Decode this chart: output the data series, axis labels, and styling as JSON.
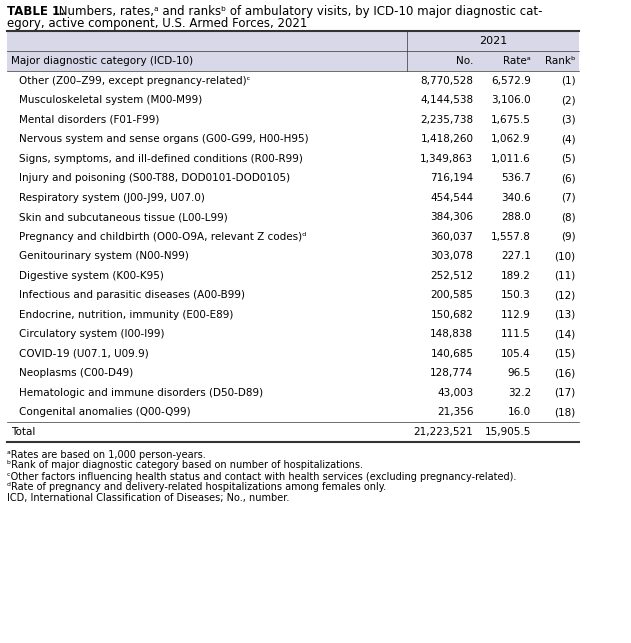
{
  "title_bold": "TABLE 1.",
  "title_rest": " Numbers, rates,ᵃ and ranksᵇ of ambulatory visits, by ICD-10 major diagnostic category, active component, U.S. Armed Forces, 2021",
  "header_year": "2021",
  "col_headers": [
    "Major diagnostic category (ICD-10)",
    "No.",
    "Rateᵃ",
    "Rankᵇ"
  ],
  "rows": [
    [
      "Other (Z00–Z99, except pregnancy-related)ᶜ",
      "8,770,528",
      "6,572.9",
      "(1)"
    ],
    [
      "Musculoskeletal system (M00-M99)",
      "4,144,538",
      "3,106.0",
      "(2)"
    ],
    [
      "Mental disorders (F01-F99)",
      "2,235,738",
      "1,675.5",
      "(3)"
    ],
    [
      "Nervous system and sense organs (G00-G99, H00-H95)",
      "1,418,260",
      "1,062.9",
      "(4)"
    ],
    [
      "Signs, symptoms, and ill-defined conditions (R00-R99)",
      "1,349,863",
      "1,011.6",
      "(5)"
    ],
    [
      "Injury and poisoning (S00-T88, DOD0101-DOD0105)",
      "716,194",
      "536.7",
      "(6)"
    ],
    [
      "Respiratory system (J00-J99, U07.0)",
      "454,544",
      "340.6",
      "(7)"
    ],
    [
      "Skin and subcutaneous tissue (L00-L99)",
      "384,306",
      "288.0",
      "(8)"
    ],
    [
      "Pregnancy and childbirth (O00-O9A, relevant Z codes)ᵈ",
      "360,037",
      "1,557.8",
      "(9)"
    ],
    [
      "Genitourinary system (N00-N99)",
      "303,078",
      "227.1",
      "(10)"
    ],
    [
      "Digestive system (K00-K95)",
      "252,512",
      "189.2",
      "(11)"
    ],
    [
      "Infectious and parasitic diseases (A00-B99)",
      "200,585",
      "150.3",
      "(12)"
    ],
    [
      "Endocrine, nutrition, immunity (E00-E89)",
      "150,682",
      "112.9",
      "(13)"
    ],
    [
      "Circulatory system (I00-I99)",
      "148,838",
      "111.5",
      "(14)"
    ],
    [
      "COVID-19 (U07.1, U09.9)",
      "140,685",
      "105.4",
      "(15)"
    ],
    [
      "Neoplasms (C00-D49)",
      "128,774",
      "96.5",
      "(16)"
    ],
    [
      "Hematologic and immune disorders (D50-D89)",
      "43,003",
      "32.2",
      "(17)"
    ],
    [
      "Congenital anomalies (Q00-Q99)",
      "21,356",
      "16.0",
      "(18)"
    ]
  ],
  "total_row": [
    "Total",
    "21,223,521",
    "15,905.5",
    ""
  ],
  "footnotes": [
    "ᵃRates are based on 1,000 person-years.",
    "ᵇRank of major diagnostic category based on number of hospitalizations.",
    "ᶜOther factors influencing health status and contact with health services (excluding pregnancy-related).",
    "ᵈRate of pregnancy and delivery-related hospitalizations among females only.",
    "ICD, International Classification of Diseases; No., number."
  ],
  "header_bg": "#d8d8e8",
  "col_header_bg": "#ffffff",
  "row_bg_even": "#ffffff",
  "row_bg_odd": "#ffffff",
  "border_color": "#999999",
  "text_color": "#000000",
  "font_size": 7.5,
  "title_font_size": 8.5,
  "footnote_font_size": 7.0
}
